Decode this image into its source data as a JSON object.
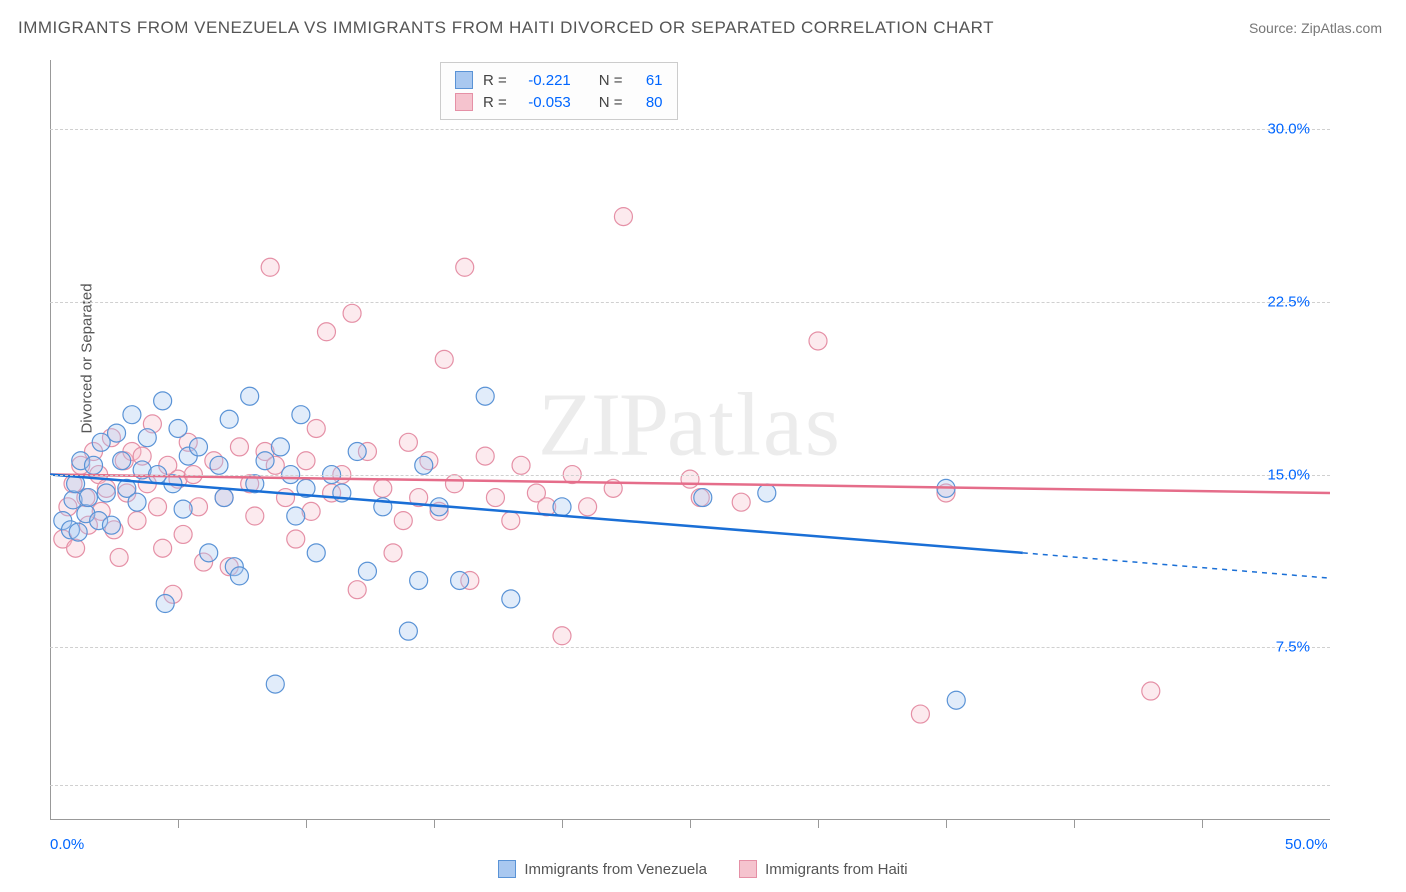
{
  "title": "IMMIGRANTS FROM VENEZUELA VS IMMIGRANTS FROM HAITI DIVORCED OR SEPARATED CORRELATION CHART",
  "source": "Source: ZipAtlas.com",
  "watermark": "ZIPatlas",
  "chart": {
    "type": "scatter",
    "y_axis_label": "Divorced or Separated",
    "xlim": [
      0,
      50
    ],
    "ylim": [
      0,
      33
    ],
    "x_ticks": [
      0,
      50
    ],
    "x_tick_labels": [
      "0.0%",
      "50.0%"
    ],
    "x_minor_ticks": [
      5,
      10,
      15,
      20,
      25,
      30,
      35,
      40,
      45
    ],
    "y_ticks": [
      7.5,
      15.0,
      22.5,
      30.0
    ],
    "y_tick_labels": [
      "7.5%",
      "15.0%",
      "22.5%",
      "30.0%"
    ],
    "gridlines_y": [
      1.5,
      7.5,
      15.0,
      22.5,
      30.0
    ],
    "background_color": "#ffffff",
    "grid_color": "#d0d0d0",
    "axis_color": "#999999",
    "label_color": "#555555",
    "tick_label_color": "#0066ff",
    "marker_radius": 9,
    "marker_stroke_width": 1.2,
    "marker_fill_opacity": 0.35,
    "series": [
      {
        "name": "Immigrants from Venezuela",
        "fill_color": "#a9c8f0",
        "stroke_color": "#5a93d6",
        "line_color": "#1a6fd6",
        "R": "-0.221",
        "N": "61",
        "trend": {
          "x1": 0,
          "y1": 15.0,
          "x2": 38,
          "y2": 11.6,
          "x2_dash": 50,
          "y2_dash": 10.5
        },
        "points": [
          [
            0.5,
            13.0
          ],
          [
            0.8,
            12.6
          ],
          [
            0.9,
            13.9
          ],
          [
            1.0,
            14.6
          ],
          [
            1.1,
            12.5
          ],
          [
            1.2,
            15.6
          ],
          [
            1.4,
            13.3
          ],
          [
            1.5,
            14.0
          ],
          [
            1.7,
            15.4
          ],
          [
            1.9,
            13.0
          ],
          [
            2.0,
            16.4
          ],
          [
            2.2,
            14.2
          ],
          [
            2.4,
            12.8
          ],
          [
            2.6,
            16.8
          ],
          [
            2.8,
            15.6
          ],
          [
            3.0,
            14.4
          ],
          [
            3.2,
            17.6
          ],
          [
            3.4,
            13.8
          ],
          [
            3.6,
            15.2
          ],
          [
            3.8,
            16.6
          ],
          [
            4.2,
            15.0
          ],
          [
            4.4,
            18.2
          ],
          [
            4.5,
            9.4
          ],
          [
            4.8,
            14.6
          ],
          [
            5.0,
            17.0
          ],
          [
            5.2,
            13.5
          ],
          [
            5.4,
            15.8
          ],
          [
            5.8,
            16.2
          ],
          [
            6.2,
            11.6
          ],
          [
            6.6,
            15.4
          ],
          [
            6.8,
            14.0
          ],
          [
            7.0,
            17.4
          ],
          [
            7.2,
            11.0
          ],
          [
            7.4,
            10.6
          ],
          [
            7.8,
            18.4
          ],
          [
            8.0,
            14.6
          ],
          [
            8.4,
            15.6
          ],
          [
            8.8,
            5.9
          ],
          [
            9.0,
            16.2
          ],
          [
            9.4,
            15.0
          ],
          [
            9.6,
            13.2
          ],
          [
            9.8,
            17.6
          ],
          [
            10.0,
            14.4
          ],
          [
            10.4,
            11.6
          ],
          [
            11.0,
            15.0
          ],
          [
            11.4,
            14.2
          ],
          [
            12.0,
            16.0
          ],
          [
            12.4,
            10.8
          ],
          [
            13.0,
            13.6
          ],
          [
            14.0,
            8.2
          ],
          [
            14.4,
            10.4
          ],
          [
            14.6,
            15.4
          ],
          [
            15.2,
            13.6
          ],
          [
            16.0,
            10.4
          ],
          [
            17.0,
            18.4
          ],
          [
            18.0,
            9.6
          ],
          [
            20.0,
            13.6
          ],
          [
            25.5,
            14.0
          ],
          [
            28.0,
            14.2
          ],
          [
            35.0,
            14.4
          ],
          [
            35.4,
            5.2
          ]
        ]
      },
      {
        "name": "Immigrants from Haiti",
        "fill_color": "#f5c3ce",
        "stroke_color": "#e590a6",
        "line_color": "#e56d8a",
        "R": "-0.053",
        "N": "80",
        "trend": {
          "x1": 0,
          "y1": 15.0,
          "x2": 50,
          "y2": 14.2
        },
        "points": [
          [
            0.5,
            12.2
          ],
          [
            0.7,
            13.6
          ],
          [
            0.9,
            14.6
          ],
          [
            1.0,
            11.8
          ],
          [
            1.2,
            15.4
          ],
          [
            1.4,
            14.0
          ],
          [
            1.5,
            12.8
          ],
          [
            1.7,
            16.0
          ],
          [
            1.9,
            15.0
          ],
          [
            2.0,
            13.4
          ],
          [
            2.2,
            14.4
          ],
          [
            2.4,
            16.6
          ],
          [
            2.5,
            12.6
          ],
          [
            2.7,
            11.4
          ],
          [
            2.9,
            15.6
          ],
          [
            3.0,
            14.2
          ],
          [
            3.2,
            16.0
          ],
          [
            3.4,
            13.0
          ],
          [
            3.6,
            15.8
          ],
          [
            3.8,
            14.6
          ],
          [
            4.0,
            17.2
          ],
          [
            4.2,
            13.6
          ],
          [
            4.4,
            11.8
          ],
          [
            4.6,
            15.4
          ],
          [
            4.8,
            9.8
          ],
          [
            5.0,
            14.8
          ],
          [
            5.2,
            12.4
          ],
          [
            5.4,
            16.4
          ],
          [
            5.6,
            15.0
          ],
          [
            5.8,
            13.6
          ],
          [
            6.0,
            11.2
          ],
          [
            6.4,
            15.6
          ],
          [
            6.8,
            14.0
          ],
          [
            7.0,
            11.0
          ],
          [
            7.4,
            16.2
          ],
          [
            7.8,
            14.6
          ],
          [
            8.0,
            13.2
          ],
          [
            8.4,
            16.0
          ],
          [
            8.6,
            24.0
          ],
          [
            8.8,
            15.4
          ],
          [
            9.2,
            14.0
          ],
          [
            9.6,
            12.2
          ],
          [
            10.0,
            15.6
          ],
          [
            10.2,
            13.4
          ],
          [
            10.4,
            17.0
          ],
          [
            10.8,
            21.2
          ],
          [
            11.0,
            14.2
          ],
          [
            11.4,
            15.0
          ],
          [
            11.8,
            22.0
          ],
          [
            12.0,
            10.0
          ],
          [
            12.4,
            16.0
          ],
          [
            13.0,
            14.4
          ],
          [
            13.4,
            11.6
          ],
          [
            13.8,
            13.0
          ],
          [
            14.0,
            16.4
          ],
          [
            14.4,
            14.0
          ],
          [
            14.8,
            15.6
          ],
          [
            15.2,
            13.4
          ],
          [
            15.4,
            20.0
          ],
          [
            15.8,
            14.6
          ],
          [
            16.2,
            24.0
          ],
          [
            16.4,
            10.4
          ],
          [
            17.0,
            15.8
          ],
          [
            17.4,
            14.0
          ],
          [
            18.0,
            13.0
          ],
          [
            18.4,
            15.4
          ],
          [
            19.0,
            14.2
          ],
          [
            19.4,
            13.6
          ],
          [
            20.0,
            8.0
          ],
          [
            20.4,
            15.0
          ],
          [
            21.0,
            13.6
          ],
          [
            22.0,
            14.4
          ],
          [
            22.4,
            26.2
          ],
          [
            25.0,
            14.8
          ],
          [
            25.4,
            14.0
          ],
          [
            27.0,
            13.8
          ],
          [
            30.0,
            20.8
          ],
          [
            34.0,
            4.6
          ],
          [
            35.0,
            14.2
          ],
          [
            43.0,
            5.6
          ]
        ]
      }
    ],
    "stats_box": {
      "rows": [
        {
          "swatch_fill": "#a9c8f0",
          "swatch_stroke": "#5a93d6",
          "R_label": "R =",
          "R": "-0.221",
          "N_label": "N =",
          "N": "61"
        },
        {
          "swatch_fill": "#f5c3ce",
          "swatch_stroke": "#e590a6",
          "R_label": "R =",
          "R": "-0.053",
          "N_label": "N =",
          "N": "80"
        }
      ]
    },
    "legend_bottom": [
      {
        "swatch_fill": "#a9c8f0",
        "swatch_stroke": "#5a93d6",
        "label": "Immigrants from Venezuela"
      },
      {
        "swatch_fill": "#f5c3ce",
        "swatch_stroke": "#e590a6",
        "label": "Immigrants from Haiti"
      }
    ]
  }
}
